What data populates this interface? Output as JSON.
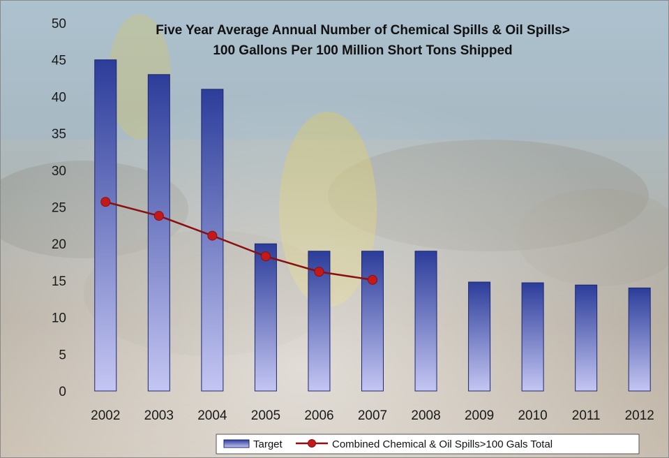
{
  "chart_data": {
    "type": "bar",
    "title_lines": [
      "Five Year Average Annual Number of Chemical Spills & Oil Spills>",
      "100 Gallons Per 100 Million Short Tons Shipped"
    ],
    "categories": [
      "2002",
      "2003",
      "2004",
      "2005",
      "2006",
      "2007",
      "2008",
      "2009",
      "2010",
      "2011",
      "2012"
    ],
    "ylim": [
      0,
      50
    ],
    "yticks": [
      0,
      5,
      10,
      15,
      20,
      25,
      30,
      35,
      40,
      45,
      50
    ],
    "series": [
      {
        "name": "Target",
        "kind": "bar",
        "values": [
          45,
          43,
          41,
          20,
          19,
          19,
          19,
          14.8,
          14.7,
          14.4,
          14
        ]
      },
      {
        "name": "Combined Chemical & Oil Spills>100 Gals Total",
        "kind": "line",
        "values": [
          25.7,
          23.8,
          21.1,
          18.3,
          16.2,
          15.1,
          null,
          null,
          null,
          null,
          null
        ]
      }
    ],
    "legend_position": "bottom-right",
    "grid": false
  },
  "colors": {
    "bar_top": "#2c3d9a",
    "bar_bottom": "#c4c6f2",
    "bar_stroke": "#1c2770",
    "line": "#8a0f10",
    "marker": "#c21a1a"
  }
}
